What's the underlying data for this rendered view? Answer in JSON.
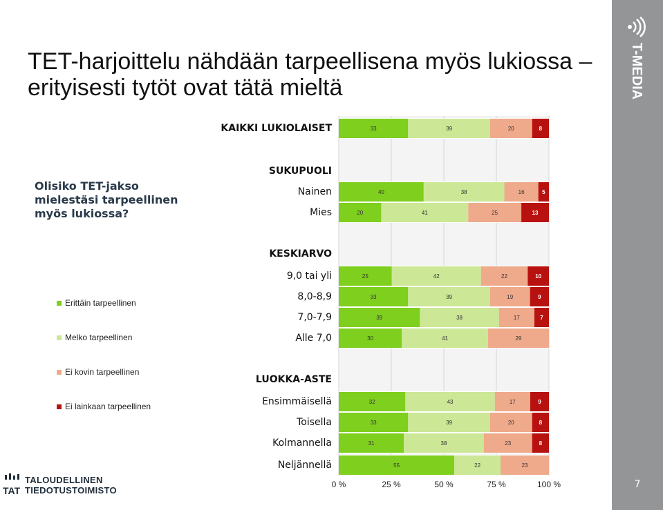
{
  "title": "TET-harjoittelu nähdään tarpeellisena myös lukiossa – erityisesti tytöt ovat tätä mieltä",
  "question": "Olisiko TET-jakso mielestäsi tarpeellinen myös lukiossa?",
  "side": {
    "brand": "T-MEDIA",
    "page_number": "7"
  },
  "footer": {
    "tat_logo": "TAT",
    "org_line1": "TALOUDELLINEN",
    "org_line2": "TIEDOTUSTOIMISTO"
  },
  "colors": [
    "#7ecf1e",
    "#cce796",
    "#efa98b",
    "#b81210"
  ],
  "chart_data": {
    "type": "bar",
    "orientation": "horizontal-stacked-100",
    "series_names": [
      "Erittäin tarpeellinen",
      "Melko tarpeellinen",
      "Ei kovin tarpeellinen",
      "Ei lainkaan tarpeellinen"
    ],
    "legend_position": "left",
    "x_ticks": [
      "0 %",
      "25 %",
      "50 %",
      "75 %",
      "100 %"
    ],
    "xlim": [
      0,
      100
    ],
    "grid": true,
    "rows": [
      {
        "label": "KAIKKI LUKIOLAISET",
        "bold": true,
        "values": [
          33,
          39,
          20,
          8
        ]
      },
      {
        "label": "SUKUPUOLI",
        "header": true
      },
      {
        "label": "Nainen",
        "values": [
          40,
          38,
          16,
          5
        ]
      },
      {
        "label": "Mies",
        "values": [
          20,
          41,
          25,
          13
        ]
      },
      {
        "label": "KESKIARVO",
        "header": true
      },
      {
        "label": "9,0 tai yli",
        "values": [
          25,
          42,
          22,
          10
        ]
      },
      {
        "label": "8,0-8,9",
        "values": [
          33,
          39,
          19,
          9
        ]
      },
      {
        "label": "7,0-7,9",
        "values": [
          39,
          38,
          17,
          7
        ]
      },
      {
        "label": "Alle 7,0",
        "values": [
          30,
          41,
          29,
          0
        ]
      },
      {
        "label": "LUOKKA-ASTE",
        "header": true
      },
      {
        "label": "Ensimmäisellä",
        "values": [
          32,
          43,
          17,
          9
        ]
      },
      {
        "label": "Toisella",
        "values": [
          33,
          39,
          20,
          8
        ]
      },
      {
        "label": "Kolmannella",
        "values": [
          31,
          38,
          23,
          8
        ]
      },
      {
        "label": "Neljännellä",
        "values": [
          55,
          22,
          23,
          0
        ]
      }
    ]
  }
}
